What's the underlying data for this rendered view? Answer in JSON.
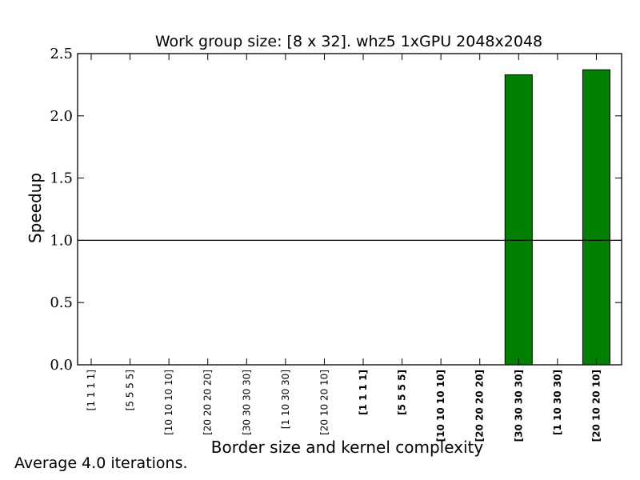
{
  "chart_data": {
    "type": "bar",
    "title": "Work group size: [8 x 32]. whz5 1xGPU 2048x2048",
    "xlabel": "Border size and kernel complexity",
    "ylabel": "Speedup",
    "ylim": [
      0.0,
      2.5
    ],
    "yticks": [
      "0.0",
      "0.5",
      "1.0",
      "1.5",
      "2.0",
      "2.5"
    ],
    "reference_line": 1.0,
    "bar_color": "#008000",
    "categories": [
      "[1 1 1 1]",
      "[5 5 5 5]",
      "[10 10 10 10]",
      "[20 20 20 20]",
      "[30 30 30 30]",
      "[1 10 30 30]",
      "[20 10 20 10]",
      "[1 1 1 1]",
      "[5 5 5 5]",
      "[10 10 10 10]",
      "[20 20 20 20]",
      "[30 30 30 30]",
      "[1 10 30 30]",
      "[20 10 20 10]"
    ],
    "bold_categories": [
      false,
      false,
      false,
      false,
      false,
      false,
      false,
      true,
      true,
      true,
      true,
      true,
      true,
      true
    ],
    "values": [
      0,
      0,
      0,
      0,
      0,
      0,
      0,
      0,
      0,
      0,
      0,
      2.33,
      0,
      2.37
    ],
    "grid": false
  },
  "footnote": "Average 4.0 iterations."
}
